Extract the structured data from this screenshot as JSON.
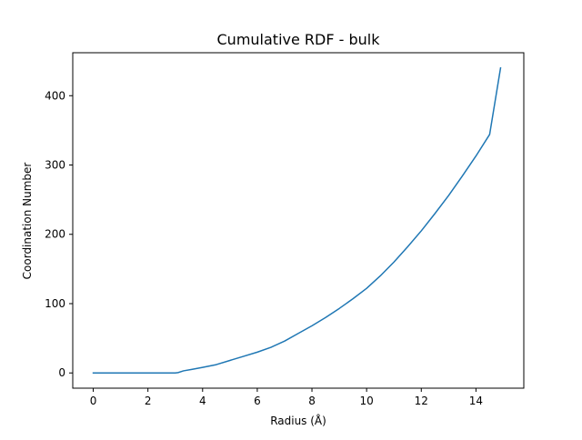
{
  "chart_data": {
    "type": "line",
    "title": "Cumulative RDF - bulk",
    "xlabel": "Radius (Å)",
    "ylabel": "Coordination Number",
    "xlim": [
      -0.75,
      15.75
    ],
    "ylim": [
      -22,
      462
    ],
    "xticks": [
      0,
      2,
      4,
      6,
      8,
      10,
      12,
      14
    ],
    "yticks": [
      0,
      100,
      200,
      300,
      400
    ],
    "grid": false,
    "legend": "none",
    "series_color": "#1f77b4",
    "series": [
      {
        "x": [
          0,
          0.5,
          1,
          1.5,
          2,
          2.5,
          3,
          3.1,
          3.3,
          3.6,
          4,
          4.5,
          5,
          5.5,
          6,
          6.5,
          7,
          7.5,
          8,
          8.5,
          9,
          9.5,
          10,
          10.5,
          11,
          11.5,
          12,
          12.5,
          13,
          13.5,
          14,
          14.5,
          14.9
        ],
        "y": [
          0,
          0,
          0,
          0,
          0,
          0,
          0,
          0.5,
          3,
          5,
          8,
          12,
          18,
          24,
          30,
          37,
          46,
          57,
          68,
          80,
          93,
          107,
          122,
          140,
          160,
          182,
          205,
          230,
          256,
          284,
          313,
          344,
          440
        ]
      }
    ]
  }
}
